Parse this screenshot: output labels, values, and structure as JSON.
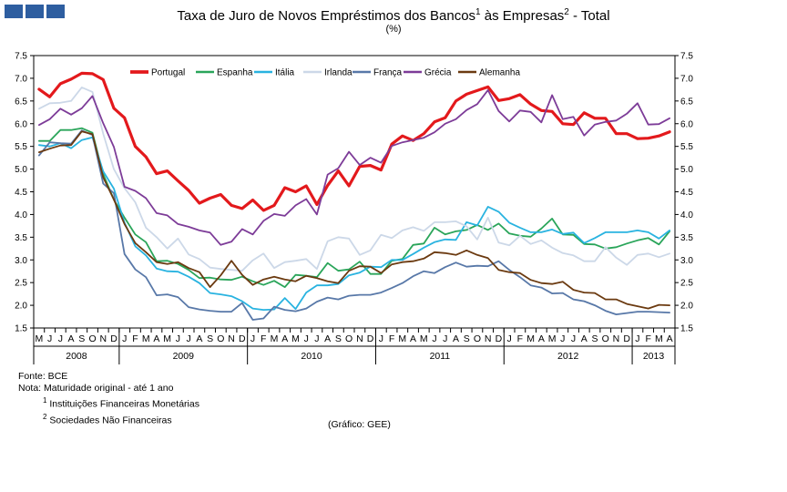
{
  "header": {
    "title_parts": [
      "Taxa de Juro de Novos Empréstimos  dos Bancos",
      "1",
      " às Empresas",
      "2",
      " - Total"
    ],
    "subtitle": "(%)"
  },
  "notes": {
    "fonte": "Fonte:  BCE",
    "nota": "Nota:  Maturidade original - até 1 ano",
    "footnote1_mark": "1",
    "footnote1": "Instituições Financeiras Monetárias",
    "footnote2_mark": "2",
    "footnote2": "Sociedades Não Financeiras",
    "grafico": "(Gráfico:  GEE)"
  },
  "chart_data": {
    "type": "line",
    "y_ticks": [
      "1.5",
      "2.0",
      "2.5",
      "3.0",
      "3.5",
      "4.0",
      "4.5",
      "5.0",
      "5.5",
      "6.0",
      "6.5",
      "7.0",
      "7.5"
    ],
    "ylim": [
      1.5,
      7.5
    ],
    "grid": false,
    "legend_position": "top",
    "x_month_labels": [
      "M",
      "J",
      "J",
      "A",
      "S",
      "O",
      "N",
      "D",
      "J",
      "F",
      "M",
      "A",
      "M",
      "J",
      "J",
      "A",
      "S",
      "O",
      "N",
      "D",
      "J",
      "F",
      "M",
      "A",
      "M",
      "J",
      "J",
      "A",
      "S",
      "O",
      "N",
      "D",
      "J",
      "F",
      "M",
      "A",
      "M",
      "J",
      "J",
      "A",
      "S",
      "O",
      "N",
      "D",
      "J",
      "F",
      "M",
      "A",
      "M",
      "J",
      "J",
      "A",
      "S",
      "O",
      "N",
      "D",
      "J",
      "F",
      "M",
      "A"
    ],
    "x_year_labels": [
      {
        "label": "2008",
        "start": 0,
        "end": 8
      },
      {
        "label": "2009",
        "start": 8,
        "end": 20
      },
      {
        "label": "2010",
        "start": 20,
        "end": 32
      },
      {
        "label": "2011",
        "start": 32,
        "end": 44
      },
      {
        "label": "2012",
        "start": 44,
        "end": 56
      },
      {
        "label": "2013",
        "start": 56,
        "end": 60
      }
    ],
    "series": [
      {
        "name": "Portugal",
        "color": "#e3191c",
        "width": 3.2,
        "values": [
          6.76,
          6.59,
          6.88,
          6.98,
          7.11,
          7.1,
          6.97,
          6.34,
          6.13,
          5.5,
          5.27,
          4.9,
          4.96,
          4.74,
          4.53,
          4.25,
          4.36,
          4.44,
          4.2,
          4.13,
          4.32,
          4.09,
          4.2,
          4.59,
          4.5,
          4.63,
          4.22,
          4.64,
          4.96,
          4.63,
          5.06,
          5.08,
          4.98,
          5.55,
          5.73,
          5.63,
          5.78,
          6.04,
          6.13,
          6.5,
          6.65,
          6.73,
          6.81,
          6.51,
          6.55,
          6.64,
          6.43,
          6.29,
          6.27,
          6.0,
          5.98,
          6.24,
          6.12,
          6.12,
          5.78,
          5.78,
          5.67,
          5.68,
          5.73,
          5.82
        ]
      },
      {
        "name": "Espanha",
        "color": "#2aa55a",
        "width": 1.8,
        "values": [
          5.62,
          5.62,
          5.86,
          5.86,
          5.9,
          5.8,
          4.89,
          4.33,
          3.93,
          3.56,
          3.39,
          2.97,
          2.98,
          2.91,
          2.78,
          2.6,
          2.61,
          2.57,
          2.56,
          2.63,
          2.53,
          2.45,
          2.54,
          2.4,
          2.67,
          2.65,
          2.62,
          2.93,
          2.76,
          2.79,
          2.96,
          2.69,
          2.69,
          2.98,
          3.02,
          3.33,
          3.36,
          3.71,
          3.56,
          3.63,
          3.66,
          3.77,
          3.66,
          3.8,
          3.58,
          3.53,
          3.51,
          3.69,
          3.91,
          3.56,
          3.55,
          3.35,
          3.34,
          3.25,
          3.28,
          3.36,
          3.43,
          3.48,
          3.34,
          3.63
        ]
      },
      {
        "name": "Itália",
        "color": "#29b3e0",
        "width": 1.8,
        "values": [
          5.53,
          5.5,
          5.57,
          5.46,
          5.64,
          5.7,
          4.95,
          4.57,
          3.82,
          3.3,
          3.1,
          2.81,
          2.75,
          2.74,
          2.63,
          2.49,
          2.27,
          2.24,
          2.2,
          2.09,
          1.93,
          1.9,
          1.91,
          2.16,
          1.92,
          2.28,
          2.44,
          2.44,
          2.47,
          2.66,
          2.72,
          2.85,
          2.84,
          3.0,
          3.0,
          3.13,
          3.27,
          3.39,
          3.45,
          3.44,
          3.83,
          3.76,
          4.17,
          4.06,
          3.82,
          3.71,
          3.61,
          3.61,
          3.67,
          3.57,
          3.6,
          3.37,
          3.48,
          3.61,
          3.61,
          3.61,
          3.65,
          3.61,
          3.47,
          3.65
        ]
      },
      {
        "name": "Irlanda",
        "color": "#ccd8e8",
        "width": 1.8,
        "values": [
          6.33,
          6.45,
          6.46,
          6.5,
          6.8,
          6.7,
          5.78,
          5.0,
          4.58,
          4.27,
          3.71,
          3.5,
          3.25,
          3.47,
          3.12,
          3.02,
          2.83,
          2.8,
          2.78,
          2.76,
          2.99,
          3.14,
          2.82,
          2.95,
          2.98,
          3.02,
          2.8,
          3.41,
          3.5,
          3.47,
          3.11,
          3.21,
          3.55,
          3.48,
          3.65,
          3.72,
          3.64,
          3.83,
          3.83,
          3.85,
          3.74,
          3.45,
          3.93,
          3.38,
          3.32,
          3.53,
          3.35,
          3.43,
          3.27,
          3.15,
          3.1,
          2.97,
          2.97,
          3.28,
          3.05,
          2.89,
          3.11,
          3.14,
          3.06,
          3.14
        ]
      },
      {
        "name": "França",
        "color": "#5878a8",
        "width": 1.8,
        "values": [
          5.3,
          5.59,
          5.57,
          5.56,
          5.85,
          5.75,
          4.68,
          4.47,
          3.13,
          2.79,
          2.62,
          2.22,
          2.24,
          2.18,
          1.96,
          1.91,
          1.88,
          1.86,
          1.86,
          2.05,
          1.68,
          1.71,
          1.97,
          1.9,
          1.87,
          1.93,
          2.08,
          2.17,
          2.13,
          2.21,
          2.23,
          2.23,
          2.28,
          2.38,
          2.49,
          2.64,
          2.75,
          2.71,
          2.84,
          2.94,
          2.85,
          2.87,
          2.86,
          2.97,
          2.78,
          2.62,
          2.44,
          2.39,
          2.26,
          2.27,
          2.13,
          2.09,
          2.0,
          1.88,
          1.8,
          1.83,
          1.86,
          1.86,
          1.85,
          1.84
        ]
      },
      {
        "name": "Grécia",
        "color": "#7d3c98",
        "width": 1.8,
        "values": [
          5.97,
          6.1,
          6.33,
          6.2,
          6.34,
          6.61,
          6.01,
          5.49,
          4.61,
          4.52,
          4.36,
          4.03,
          3.98,
          3.79,
          3.73,
          3.65,
          3.6,
          3.33,
          3.4,
          3.68,
          3.56,
          3.86,
          4.01,
          3.97,
          4.2,
          4.34,
          4.0,
          4.88,
          5.02,
          5.38,
          5.09,
          5.25,
          5.14,
          5.51,
          5.59,
          5.64,
          5.69,
          5.81,
          6.0,
          6.1,
          6.3,
          6.43,
          6.74,
          6.28,
          6.05,
          6.29,
          6.26,
          6.03,
          6.63,
          6.1,
          6.15,
          5.74,
          5.98,
          6.04,
          6.07,
          6.22,
          6.45,
          5.98,
          5.99,
          6.12
        ]
      },
      {
        "name": "Alemanha",
        "color": "#6b3a10",
        "width": 1.8,
        "values": [
          5.37,
          5.45,
          5.52,
          5.53,
          5.83,
          5.77,
          4.82,
          4.33,
          3.79,
          3.37,
          3.17,
          2.95,
          2.91,
          2.95,
          2.82,
          2.73,
          2.4,
          2.66,
          2.98,
          2.67,
          2.45,
          2.57,
          2.63,
          2.57,
          2.53,
          2.65,
          2.6,
          2.53,
          2.49,
          2.76,
          2.86,
          2.85,
          2.71,
          2.9,
          2.95,
          2.97,
          3.03,
          3.17,
          3.15,
          3.11,
          3.21,
          3.11,
          3.04,
          2.78,
          2.73,
          2.71,
          2.56,
          2.49,
          2.47,
          2.52,
          2.34,
          2.28,
          2.27,
          2.13,
          2.13,
          2.03,
          1.98,
          1.93,
          2.01,
          2.0
        ]
      }
    ]
  }
}
